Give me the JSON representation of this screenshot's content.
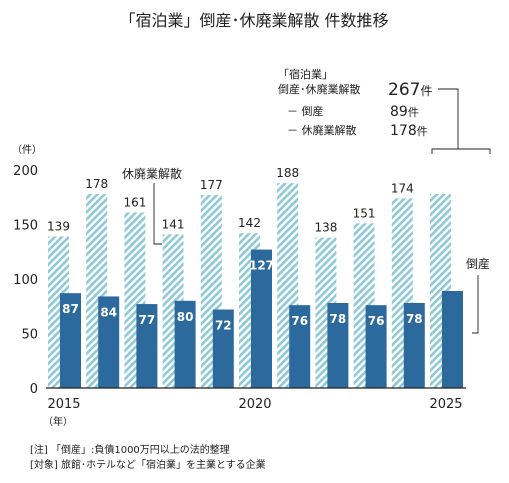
{
  "chart_data": {
    "type": "bar",
    "title": "「宿泊業」倒産･休廃業解散 件数推移",
    "y_unit": "（件）",
    "x_unit": "（年）",
    "years": [
      2015,
      2016,
      2017,
      2018,
      2019,
      2020,
      2021,
      2022,
      2023,
      2024,
      2025
    ],
    "x_tick_labels": [
      "2015",
      "2020",
      "2025"
    ],
    "y_ticks": [
      0,
      50,
      100,
      150,
      200
    ],
    "ylim": [
      0,
      200
    ],
    "grid": false,
    "series": [
      {
        "name": "休廃業解散",
        "style": "hatched",
        "color": "#8ec9d8",
        "values": [
          139,
          178,
          161,
          141,
          177,
          142,
          188,
          138,
          151,
          174,
          178
        ],
        "value_labels": [
          "139",
          "178",
          "161",
          "141",
          "177",
          "142",
          "188",
          "138",
          "151",
          "174",
          ""
        ]
      },
      {
        "name": "倒産",
        "style": "solid",
        "color": "#2c6a9e",
        "values": [
          87,
          84,
          77,
          80,
          72,
          127,
          76,
          78,
          76,
          78,
          89
        ],
        "value_labels": [
          "87",
          "84",
          "77",
          "80",
          "72",
          "127",
          "76",
          "78",
          "76",
          "78",
          ""
        ]
      }
    ],
    "annotations": {
      "haitai_callout": "休廃業解散",
      "tosan_callout": "倒産",
      "box_heading": "「宿泊業」",
      "box_total_label": "倒産･休廃業解散",
      "box_total_value": "267",
      "box_unit": "件",
      "box_tosan_label": "－ 倒産",
      "box_tosan_value": "89",
      "box_haitai_label": "－ 休廃業解散",
      "box_haitai_value": "178"
    },
    "notes": [
      "[注] 「倒産」:負債1000万円以上の法的整理",
      "[対象] 旅館･ホテルなど「宿泊業」を主業とする企業"
    ]
  }
}
